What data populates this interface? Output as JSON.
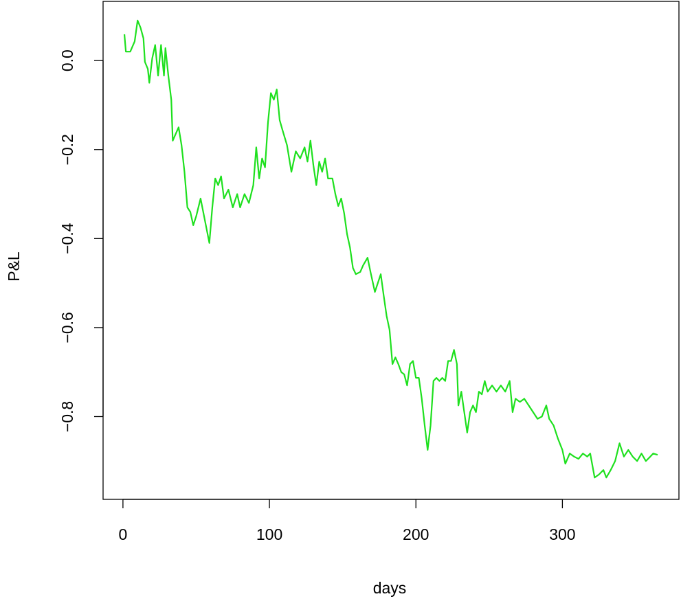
{
  "chart_data": {
    "type": "line",
    "xlabel": "days",
    "ylabel": "P&L",
    "x": [
      1,
      2,
      5,
      8,
      10,
      12,
      14,
      15,
      17,
      18,
      20,
      22,
      24,
      26,
      28,
      29,
      31,
      33,
      34,
      36,
      38,
      40,
      42,
      44,
      46,
      48,
      50,
      53,
      56,
      59,
      61,
      63,
      65,
      67,
      69,
      72,
      75,
      78,
      80,
      83,
      86,
      89,
      91,
      93,
      95,
      97,
      99,
      101,
      103,
      105,
      107,
      109,
      112,
      115,
      118,
      121,
      124,
      126,
      128,
      130,
      132,
      134,
      136,
      138,
      140,
      143,
      145,
      147,
      149,
      151,
      153,
      155,
      157,
      159,
      162,
      164,
      167,
      169,
      172,
      174,
      176,
      178,
      180,
      182,
      184,
      186,
      188,
      190,
      192,
      194,
      196,
      198,
      200,
      202,
      204,
      206,
      208,
      210,
      212,
      214,
      216,
      218,
      220,
      222,
      224,
      226,
      228,
      229,
      231,
      233,
      235,
      237,
      239,
      241,
      243,
      245,
      247,
      249,
      252,
      255,
      258,
      261,
      264,
      266,
      268,
      271,
      274,
      277,
      280,
      283,
      286,
      289,
      291,
      294,
      297,
      300,
      302,
      305,
      308,
      311,
      314,
      317,
      319,
      322,
      325,
      328,
      330,
      333,
      336,
      339,
      342,
      345,
      348,
      351,
      354,
      357,
      360,
      362,
      365
    ],
    "series": [
      {
        "name": "P&L",
        "color": "#1ee01e",
        "values": [
          0.059,
          0.02,
          0.02,
          0.043,
          0.09,
          0.074,
          0.05,
          -0.003,
          -0.019,
          -0.05,
          0.005,
          0.035,
          -0.034,
          0.035,
          -0.034,
          0.028,
          -0.034,
          -0.088,
          -0.18,
          -0.165,
          -0.15,
          -0.19,
          -0.25,
          -0.33,
          -0.34,
          -0.37,
          -0.35,
          -0.31,
          -0.36,
          -0.41,
          -0.33,
          -0.265,
          -0.28,
          -0.26,
          -0.31,
          -0.29,
          -0.33,
          -0.3,
          -0.33,
          -0.3,
          -0.32,
          -0.28,
          -0.195,
          -0.265,
          -0.22,
          -0.24,
          -0.14,
          -0.073,
          -0.088,
          -0.065,
          -0.134,
          -0.157,
          -0.19,
          -0.25,
          -0.204,
          -0.22,
          -0.195,
          -0.227,
          -0.18,
          -0.235,
          -0.28,
          -0.227,
          -0.25,
          -0.22,
          -0.265,
          -0.265,
          -0.3,
          -0.327,
          -0.31,
          -0.343,
          -0.39,
          -0.42,
          -0.466,
          -0.48,
          -0.475,
          -0.46,
          -0.443,
          -0.475,
          -0.52,
          -0.5,
          -0.48,
          -0.528,
          -0.574,
          -0.605,
          -0.682,
          -0.667,
          -0.682,
          -0.7,
          -0.705,
          -0.73,
          -0.682,
          -0.675,
          -0.713,
          -0.713,
          -0.76,
          -0.82,
          -0.875,
          -0.82,
          -0.72,
          -0.713,
          -0.72,
          -0.713,
          -0.72,
          -0.675,
          -0.675,
          -0.65,
          -0.682,
          -0.775,
          -0.744,
          -0.79,
          -0.836,
          -0.79,
          -0.775,
          -0.79,
          -0.744,
          -0.75,
          -0.72,
          -0.744,
          -0.73,
          -0.744,
          -0.73,
          -0.744,
          -0.72,
          -0.79,
          -0.76,
          -0.767,
          -0.76,
          -0.775,
          -0.79,
          -0.805,
          -0.8,
          -0.775,
          -0.805,
          -0.82,
          -0.85,
          -0.875,
          -0.906,
          -0.883,
          -0.89,
          -0.895,
          -0.883,
          -0.89,
          -0.883,
          -0.937,
          -0.93,
          -0.92,
          -0.937,
          -0.92,
          -0.9,
          -0.86,
          -0.89,
          -0.875,
          -0.89,
          -0.9,
          -0.883,
          -0.9,
          -0.89,
          -0.883,
          -0.886
        ]
      }
    ],
    "xlim": [
      -13.56,
      379.56
    ],
    "xticks": [
      0,
      100,
      200,
      300
    ],
    "ylim": [
      -0.986,
      0.133
    ],
    "yticks": [
      {
        "value": 0,
        "label": "0.0"
      },
      {
        "value": -0.2,
        "label": "−0.2"
      },
      {
        "value": -0.4,
        "label": "−0.4"
      },
      {
        "value": -0.6,
        "label": "−0.6"
      },
      {
        "value": -0.8,
        "label": "−0.8"
      }
    ]
  }
}
